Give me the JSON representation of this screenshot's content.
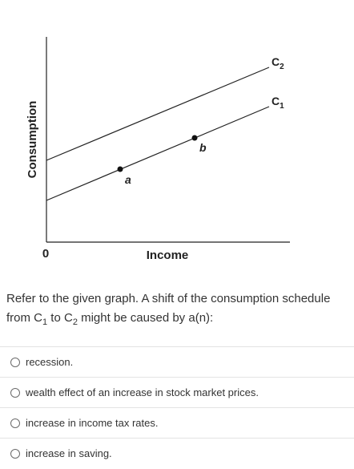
{
  "graph": {
    "y_axis_label": "Consumption",
    "x_axis_label": "Income",
    "origin_label": "0",
    "lines": [
      {
        "label_letter": "C",
        "label_sub": "2"
      },
      {
        "label_letter": "C",
        "label_sub": "1"
      }
    ],
    "points": [
      {
        "label": "a"
      },
      {
        "label": "b"
      }
    ]
  },
  "question": {
    "text_before": "Refer to the given graph. A shift of the consumption schedule from C",
    "sub_from": "1",
    "text_middle": " to C",
    "sub_to": "2",
    "text_after": " might be caused by a(n):"
  },
  "options": [
    {
      "label": "recession."
    },
    {
      "label": "wealth effect of an increase in stock market prices."
    },
    {
      "label": "increase in income tax rates."
    },
    {
      "label": "increase in saving."
    }
  ]
}
